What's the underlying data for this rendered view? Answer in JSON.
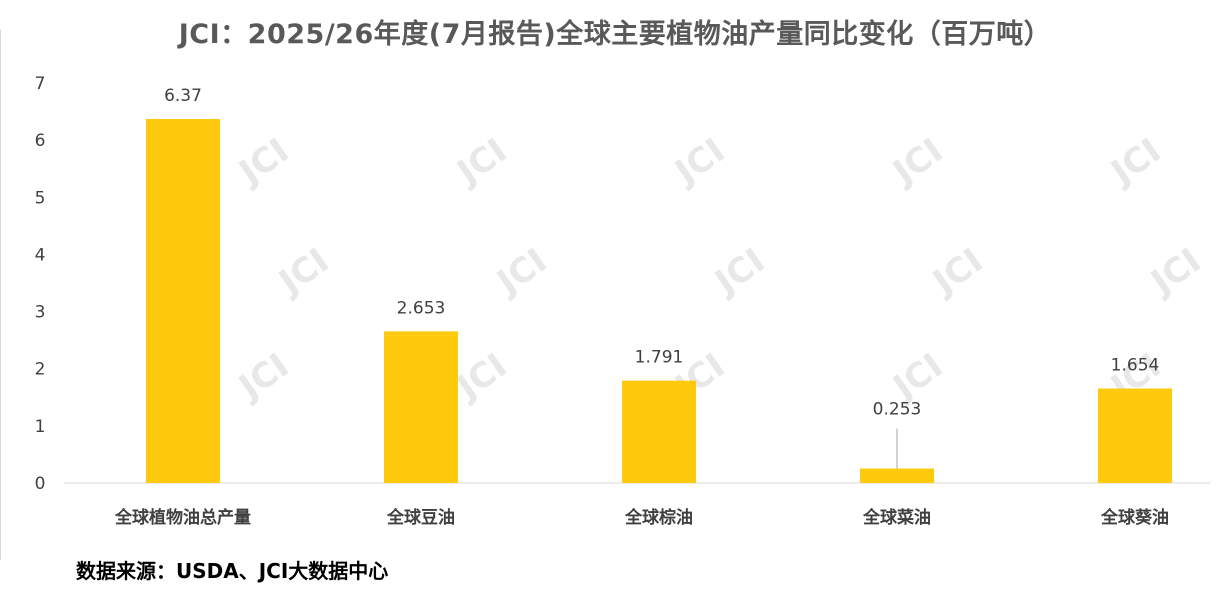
{
  "chart_data": {
    "type": "bar",
    "title": "JCI：2025/26年度(7月报告)全球主要植物油产量同比变化（百万吨）",
    "categories": [
      "全球植物油总产量",
      "全球豆油",
      "全球棕油",
      "全球菜油",
      "全球葵油"
    ],
    "values": [
      6.37,
      2.653,
      1.791,
      0.253,
      1.654
    ],
    "data_labels": [
      "6.37",
      "2.653",
      "1.791",
      "0.253",
      "1.654"
    ],
    "yticks": [
      "0",
      "1",
      "2",
      "3",
      "4",
      "5",
      "6",
      "7"
    ],
    "ylim": [
      0,
      7
    ],
    "grid": false,
    "legend": "none",
    "bar_color": "#ffc90e"
  },
  "watermark_text": "JCI",
  "source": "数据来源：USDA、JCI大数据中心"
}
